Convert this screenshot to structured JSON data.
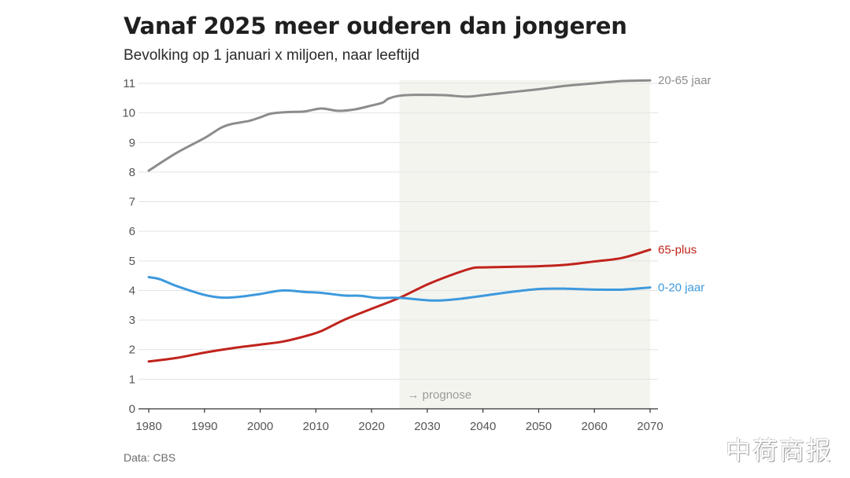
{
  "header": {
    "title": "Vanaf 2025 meer ouderen dan jongeren",
    "subtitle": "Bevolking op 1 januari x miljoen, naar leeftijd"
  },
  "footer": {
    "source": "Data: CBS",
    "watermark": "中荷商报"
  },
  "chart_data": {
    "type": "line",
    "title": "Vanaf 2025 meer ouderen dan jongeren",
    "subtitle": "Bevolking op 1 januari x miljoen, naar leeftijd",
    "xlabel": "",
    "ylabel": "",
    "xlim": [
      1980,
      2070
    ],
    "ylim": [
      0,
      11
    ],
    "x_ticks": [
      1980,
      1990,
      2000,
      2010,
      2020,
      2030,
      2040,
      2050,
      2060,
      2070
    ],
    "y_ticks": [
      0,
      1,
      2,
      3,
      4,
      5,
      6,
      7,
      8,
      9,
      10,
      11
    ],
    "grid": "horizontal",
    "legend": "right-end labels",
    "annotations": [
      {
        "text": "→ prognose",
        "region_start": 2025,
        "region_end": 2070,
        "description": "shaded forecast region"
      }
    ],
    "series": [
      {
        "name": "20-65 jaar",
        "color": "#8c8c8c",
        "points": [
          [
            1980,
            8.05
          ],
          [
            1985,
            8.65
          ],
          [
            1990,
            9.15
          ],
          [
            1993,
            9.5
          ],
          [
            1995,
            9.63
          ],
          [
            1998,
            9.73
          ],
          [
            2000,
            9.85
          ],
          [
            2002,
            9.98
          ],
          [
            2005,
            10.03
          ],
          [
            2008,
            10.05
          ],
          [
            2011,
            10.15
          ],
          [
            2014,
            10.07
          ],
          [
            2017,
            10.12
          ],
          [
            2020,
            10.25
          ],
          [
            2022,
            10.35
          ],
          [
            2023,
            10.48
          ],
          [
            2025,
            10.58
          ],
          [
            2028,
            10.61
          ],
          [
            2033,
            10.6
          ],
          [
            2037,
            10.55
          ],
          [
            2040,
            10.6
          ],
          [
            2045,
            10.7
          ],
          [
            2050,
            10.8
          ],
          [
            2055,
            10.92
          ],
          [
            2060,
            11.0
          ],
          [
            2065,
            11.08
          ],
          [
            2070,
            11.1
          ]
        ]
      },
      {
        "name": "65-plus",
        "color": "#c0231c",
        "points": [
          [
            1980,
            1.6
          ],
          [
            1985,
            1.72
          ],
          [
            1990,
            1.9
          ],
          [
            1995,
            2.05
          ],
          [
            2000,
            2.17
          ],
          [
            2004,
            2.27
          ],
          [
            2008,
            2.45
          ],
          [
            2011,
            2.63
          ],
          [
            2015,
            3.0
          ],
          [
            2020,
            3.38
          ],
          [
            2025,
            3.75
          ],
          [
            2030,
            4.2
          ],
          [
            2034,
            4.5
          ],
          [
            2038,
            4.75
          ],
          [
            2040,
            4.78
          ],
          [
            2045,
            4.8
          ],
          [
            2050,
            4.82
          ],
          [
            2055,
            4.87
          ],
          [
            2060,
            4.98
          ],
          [
            2065,
            5.1
          ],
          [
            2070,
            5.38
          ]
        ]
      },
      {
        "name": "0-20 jaar",
        "color": "#3d99dd",
        "points": [
          [
            1980,
            4.45
          ],
          [
            1982,
            4.38
          ],
          [
            1985,
            4.15
          ],
          [
            1990,
            3.85
          ],
          [
            1993,
            3.76
          ],
          [
            1996,
            3.78
          ],
          [
            2000,
            3.88
          ],
          [
            2004,
            4.0
          ],
          [
            2008,
            3.95
          ],
          [
            2011,
            3.92
          ],
          [
            2015,
            3.83
          ],
          [
            2018,
            3.82
          ],
          [
            2021,
            3.75
          ],
          [
            2025,
            3.75
          ],
          [
            2031,
            3.66
          ],
          [
            2035,
            3.7
          ],
          [
            2040,
            3.82
          ],
          [
            2045,
            3.95
          ],
          [
            2050,
            4.05
          ],
          [
            2055,
            4.06
          ],
          [
            2060,
            4.03
          ],
          [
            2065,
            4.03
          ],
          [
            2070,
            4.1
          ]
        ]
      }
    ]
  }
}
